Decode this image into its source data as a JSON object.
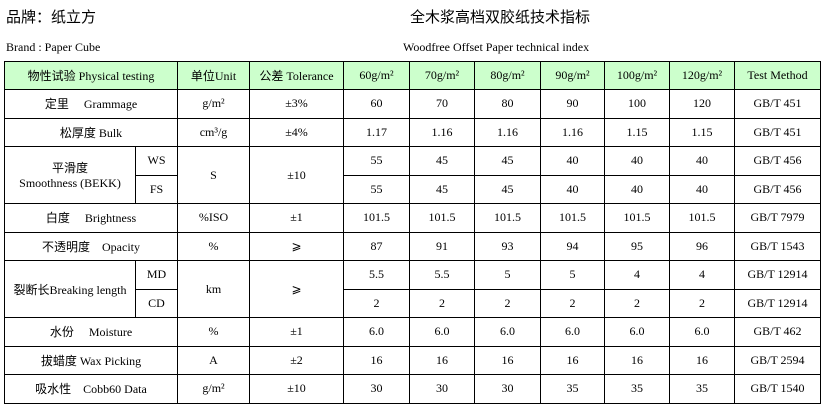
{
  "brand_cn": "品牌：纸立方",
  "title_cn": "全木浆高档双胶纸技术指标",
  "brand_en": "Brand : Paper Cube",
  "title_en": "Woodfree Offset Paper technical index",
  "header": [
    "物性试验 Physical testing",
    "单位Unit",
    "公差 Tolerance",
    "60g/m²",
    "70g/m²",
    "80g/m²",
    "90g/m²",
    "100g/m²",
    "120g/m²",
    "Test Method"
  ],
  "header_color": "#ccffcc",
  "rows": {
    "grammage": {
      "name": "定里　 Grammage",
      "unit": "g/m²",
      "tol": "±3%",
      "v": [
        "60",
        "70",
        "80",
        "90",
        "100",
        "120"
      ],
      "method": "GB/T 451"
    },
    "bulk": {
      "name": "松厚度 Bulk",
      "unit": "cm³/g",
      "tol": "±4%",
      "v": [
        "1.17",
        "1.16",
        "1.16",
        "1.16",
        "1.15",
        "1.15"
      ],
      "method": "GB/T 451"
    },
    "smooth": {
      "name": "平滑度",
      "name2": "Smoothness (BEKK)",
      "unit": "S",
      "tol": "±10",
      "ws": "WS",
      "fs": "FS",
      "v_ws": [
        "55",
        "45",
        "45",
        "40",
        "40",
        "40"
      ],
      "v_fs": [
        "55",
        "45",
        "45",
        "40",
        "40",
        "40"
      ],
      "method": "GB/T 456"
    },
    "brightness": {
      "name": "白度　 Brightness",
      "unit": "%ISO",
      "tol": "±1",
      "v": [
        "101.5",
        "101.5",
        "101.5",
        "101.5",
        "101.5",
        "101.5"
      ],
      "method": "GB/T 7979"
    },
    "opacity": {
      "name": "不透明度　Opacity",
      "unit": "%",
      "tol": "⩾",
      "v": [
        "87",
        "91",
        "93",
        "94",
        "95",
        "96"
      ],
      "method": "GB/T 1543"
    },
    "breaking": {
      "name": "裂断长Breaking length",
      "unit": "km",
      "tol": "⩾",
      "md": "MD",
      "cd": "CD",
      "v_md": [
        "5.5",
        "5.5",
        "5",
        "5",
        "4",
        "4"
      ],
      "v_cd": [
        "2",
        "2",
        "2",
        "2",
        "2",
        "2"
      ],
      "method": "GB/T 12914"
    },
    "moisture": {
      "name": "水份　 Moisture",
      "unit": "%",
      "tol": "±1",
      "v": [
        "6.0",
        "6.0",
        "6.0",
        "6.0",
        "6.0",
        "6.0"
      ],
      "method": "GB/T 462"
    },
    "wax": {
      "name": "拔蜡度 Wax Picking",
      "unit": "A",
      "tol": "±2",
      "v": [
        "16",
        "16",
        "16",
        "16",
        "16",
        "16"
      ],
      "method": "GB/T 2594"
    },
    "cobb": {
      "name": "吸水性　Cobb60 Data",
      "unit": "g/m²",
      "tol": "±10",
      "v": [
        "30",
        "30",
        "30",
        "35",
        "35",
        "35"
      ],
      "method": "GB/T 1540"
    }
  }
}
